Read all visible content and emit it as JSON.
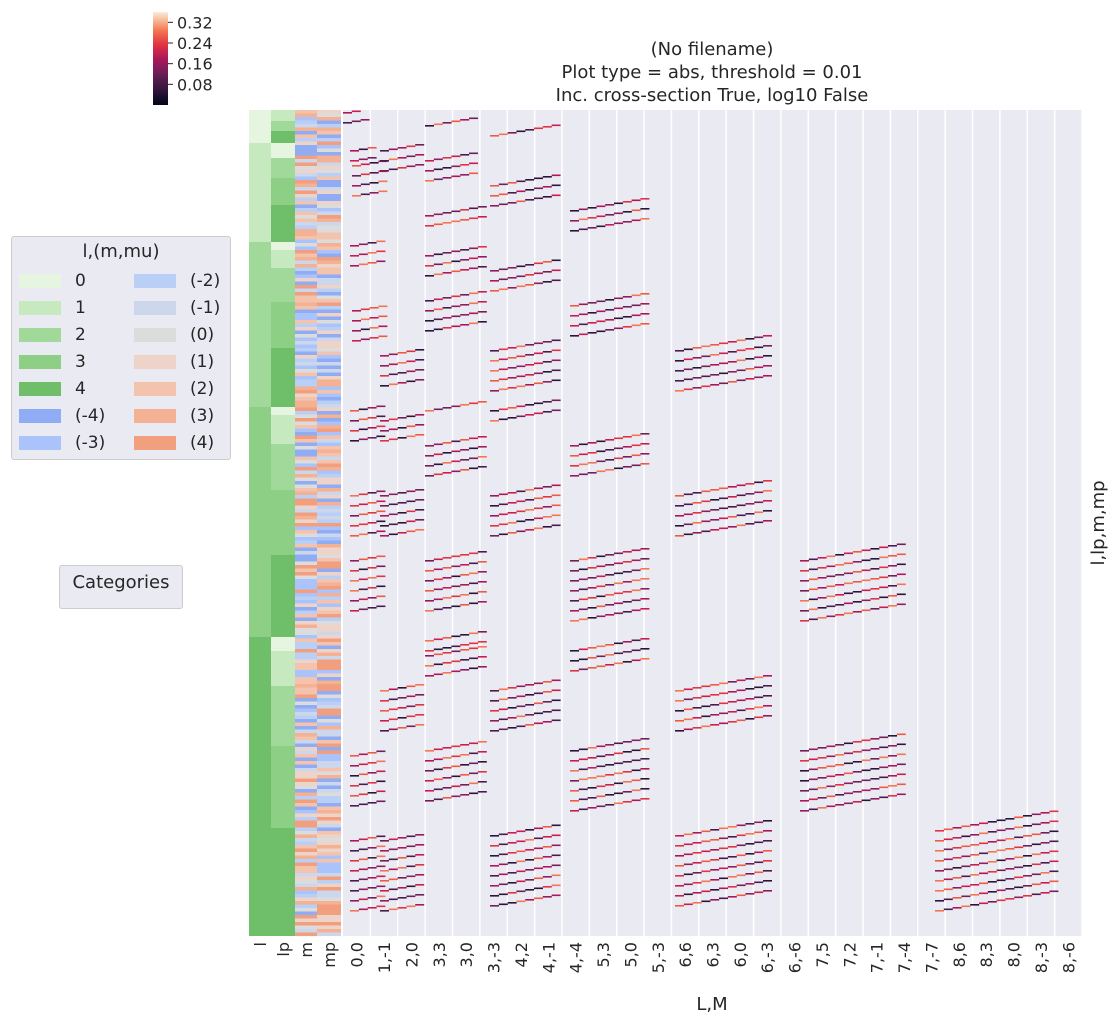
{
  "chart_data": {
    "type": "heatmap",
    "title_lines": [
      "(No filename)",
      "Plot type = abs, threshold = 0.01",
      "Inc. cross-section True, log10 False"
    ],
    "xlabel": "L,M",
    "ylabel": "l,lp,m,mp",
    "row_annotation_labels": [
      "l",
      "lp",
      "m",
      "mp"
    ],
    "x_ticks": [
      "0,0",
      "1,-1",
      "2,0",
      "3,3",
      "3,0",
      "3,-3",
      "4,2",
      "4,-1",
      "4,-4",
      "5,3",
      "5,0",
      "5,-3",
      "6,6",
      "6,3",
      "6,0",
      "6,-3",
      "6,-6",
      "7,5",
      "7,2",
      "7,-1",
      "7,-4",
      "7,-7",
      "8,6",
      "8,3",
      "8,0",
      "8,-3",
      "8,-6"
    ],
    "colorbar": {
      "ticks": [
        0.32,
        0.24,
        0.16,
        0.08
      ],
      "tick_labels": [
        "0.32",
        "0.24",
        "0.16",
        "0.08"
      ],
      "range": [
        0.0,
        0.36
      ],
      "colormap": "rocket"
    },
    "column_count": 45,
    "values_note": "Sparse diagonal bands of magnitude values; cells below threshold shown as background",
    "legend": {
      "title": "l,(m,mu)",
      "entries": [
        {
          "label": "0",
          "color": "#e5f5e0"
        },
        {
          "label": "1",
          "color": "#c7e9c0"
        },
        {
          "label": "2",
          "color": "#a1d99b"
        },
        {
          "label": "3",
          "color": "#8ccf85"
        },
        {
          "label": "4",
          "color": "#6fbf6a"
        },
        {
          "label": "(-4)",
          "color": "#90acf5"
        },
        {
          "label": "(-3)",
          "color": "#aac4fb"
        },
        {
          "label": "(-2)",
          "color": "#b9cff5"
        },
        {
          "label": "(-1)",
          "color": "#cdd7ec"
        },
        {
          "label": "(0)",
          "color": "#dcdcdc"
        },
        {
          "label": "(1)",
          "color": "#eed4c8"
        },
        {
          "label": "(2)",
          "color": "#f3c3ae"
        },
        {
          "label": "(3)",
          "color": "#f5b194"
        },
        {
          "label": "(4)",
          "color": "#f29f80"
        }
      ]
    },
    "categories_legend_title": "Categories",
    "colors": {
      "heatmap_background": "#eaeaf2",
      "grid": "#ffffff"
    }
  }
}
